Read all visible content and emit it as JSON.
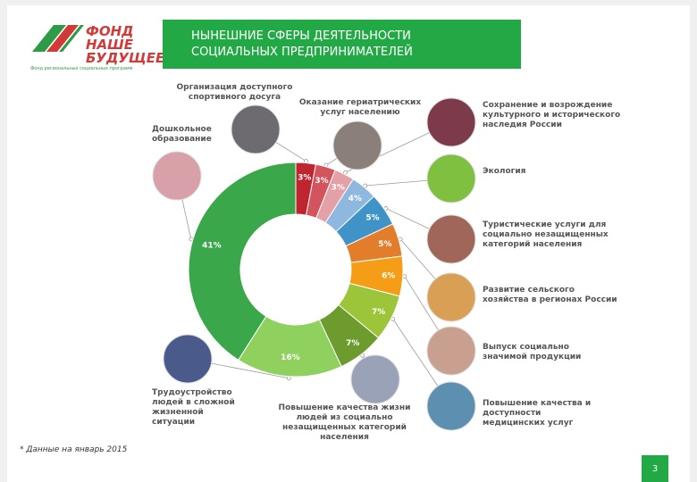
{
  "logo": {
    "line1": "ФОНД",
    "line2": "НАШЕ",
    "line3": "БУДУЩЕЕ",
    "subtitle": "Фонд региональных социальных программ"
  },
  "header": {
    "title_line1": "НЫНЕШНИЕ СФЕРЫ ДЕЯТЕЛЬНОСТИ",
    "title_line2": "СОЦИАЛЬНЫХ ПРЕДПРИНИМАТЕЛЕЙ"
  },
  "chart_data": {
    "type": "donut",
    "categories": [
      "Организация доступного спортивного досуга",
      "Оказание гериатрических услуг населению",
      "Сохранение и возрождение культурного и исторического наследия России",
      "Экология",
      "Туристические услуги для социально незащищенных категорий населения",
      "Развитие сельского хозяйства в регионах России",
      "Выпуск социально значимой продукции",
      "Повышение качества и доступности медицинских услуг",
      "Повышение качества жизни людей из социально незащищенных категорий населения",
      "Трудоустройство людей в сложной жизненной ситуации",
      "Дошкольное образование"
    ],
    "values": [
      3,
      3,
      3,
      4,
      5,
      5,
      6,
      7,
      7,
      16,
      41
    ],
    "value_labels": [
      "3%",
      "3%",
      "3%",
      "4%",
      "5%",
      "5%",
      "6%",
      "7%",
      "7%",
      "16%",
      "41%"
    ],
    "colors": [
      "#c0252f",
      "#d4545d",
      "#e3a0a6",
      "#8fb8de",
      "#3f93c6",
      "#e27d2c",
      "#f59d16",
      "#9cc53a",
      "#6e9b2d",
      "#8fd05f",
      "#3aa84a"
    ]
  },
  "footnote": "* Данные на январь 2015",
  "page_number": "3"
}
